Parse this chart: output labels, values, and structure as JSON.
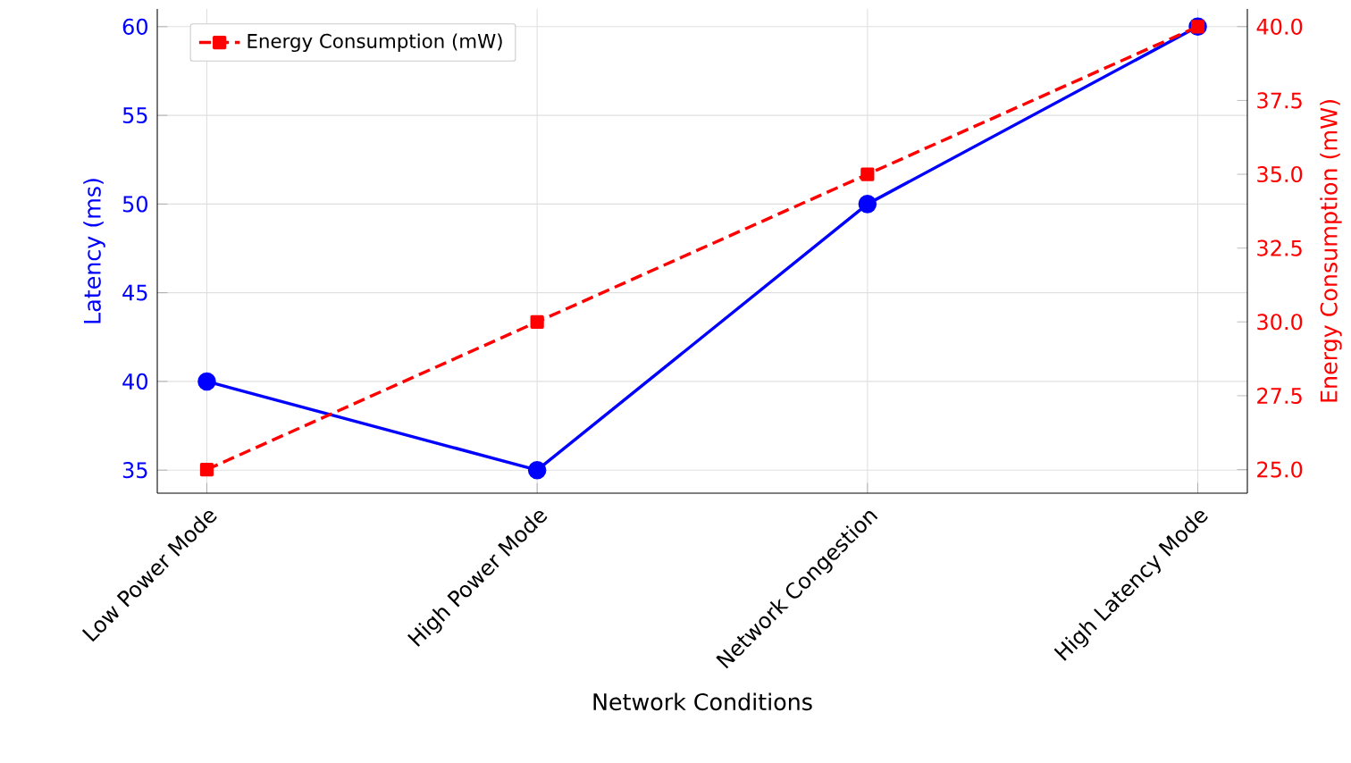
{
  "chart_data": {
    "type": "line",
    "xlabel": "Network Conditions",
    "ylabel": "Latency (ms)",
    "y2label": "Energy Consumption (mW)",
    "categories": [
      "Low Power Mode",
      "High Power Mode",
      "Network Congestion",
      "High Latency Mode"
    ],
    "series": [
      {
        "color": "#0000ff",
        "values": [
          40,
          35,
          50,
          60
        ],
        "marker": "circle",
        "line_style": "solid"
      },
      {
        "name": "Energy Consumption (mW)",
        "color": "#ff0000",
        "values": [
          25,
          30,
          35,
          40
        ],
        "axis": "y2",
        "marker": "square",
        "line_style": "dashed"
      }
    ],
    "ylim": [
      33.7,
      61
    ],
    "yticks": [
      35,
      40,
      45,
      50,
      55,
      60
    ],
    "y2lim": [
      24.2,
      40.6
    ],
    "y2ticks": [
      {
        "value": 25,
        "label": "25.0"
      },
      {
        "value": 27.5,
        "label": "27.5"
      },
      {
        "value": 30,
        "label": "30.0"
      },
      {
        "value": 32.5,
        "label": "32.5"
      },
      {
        "value": 35,
        "label": "35.0"
      },
      {
        "value": 37.5,
        "label": "37.5"
      },
      {
        "value": 40,
        "label": "40.0"
      }
    ],
    "grid": true,
    "legend": "top left"
  }
}
